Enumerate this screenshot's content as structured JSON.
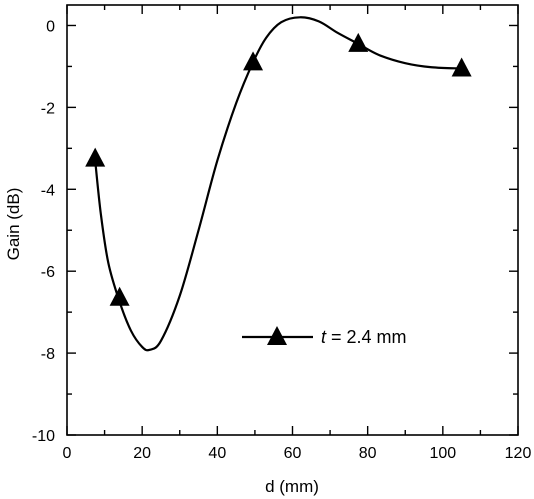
{
  "chart_data": {
    "type": "line",
    "xlabel": "d (mm)",
    "ylabel": "Gain (dB)",
    "xlim": [
      0,
      120
    ],
    "ylim": [
      -10,
      0.5
    ],
    "x_ticks": [
      "0",
      "20",
      "40",
      "60",
      "80",
      "100",
      "120"
    ],
    "y_ticks": [
      "0",
      "-2",
      "-4",
      "-6",
      "-8",
      "-10"
    ],
    "grid": false,
    "legend_position": "lower-right",
    "series": [
      {
        "name_symbol": "t",
        "name_rest": " = 2.4 mm",
        "marker": "triangle",
        "color": "#000000",
        "points": [
          {
            "x": 7.5,
            "y": -3.25
          },
          {
            "x": 14,
            "y": -6.65
          },
          {
            "x": 49.5,
            "y": -0.9
          },
          {
            "x": 77.5,
            "y": -0.45
          },
          {
            "x": 105,
            "y": -1.05
          }
        ],
        "curve": [
          {
            "x": 7.5,
            "y": -3.3
          },
          {
            "x": 9,
            "y": -4.6
          },
          {
            "x": 11,
            "y": -5.8
          },
          {
            "x": 14,
            "y": -6.75
          },
          {
            "x": 17,
            "y": -7.45
          },
          {
            "x": 20,
            "y": -7.85
          },
          {
            "x": 22,
            "y": -7.92
          },
          {
            "x": 25,
            "y": -7.7
          },
          {
            "x": 30,
            "y": -6.6
          },
          {
            "x": 35,
            "y": -5.0
          },
          {
            "x": 40,
            "y": -3.3
          },
          {
            "x": 45,
            "y": -1.9
          },
          {
            "x": 49.5,
            "y": -0.9
          },
          {
            "x": 53,
            "y": -0.3
          },
          {
            "x": 57,
            "y": 0.08
          },
          {
            "x": 62,
            "y": 0.2
          },
          {
            "x": 67,
            "y": 0.1
          },
          {
            "x": 72,
            "y": -0.18
          },
          {
            "x": 77.5,
            "y": -0.45
          },
          {
            "x": 83,
            "y": -0.72
          },
          {
            "x": 90,
            "y": -0.92
          },
          {
            "x": 97,
            "y": -1.02
          },
          {
            "x": 105,
            "y": -1.05
          }
        ]
      }
    ]
  }
}
